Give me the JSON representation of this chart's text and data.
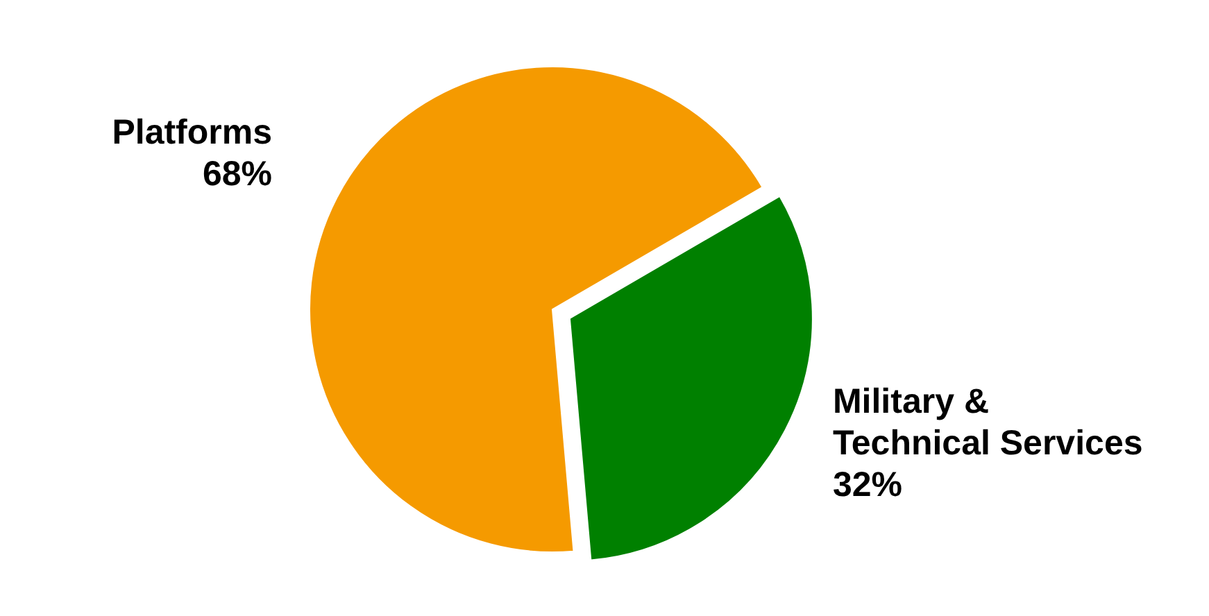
{
  "chart_data": {
    "type": "pie",
    "categories": [
      "Platforms",
      "Military & Technical Services"
    ],
    "values": [
      68,
      32
    ],
    "colors": [
      "#f59a00",
      "#008000"
    ],
    "value_labels": [
      "68%",
      "32%"
    ]
  }
}
